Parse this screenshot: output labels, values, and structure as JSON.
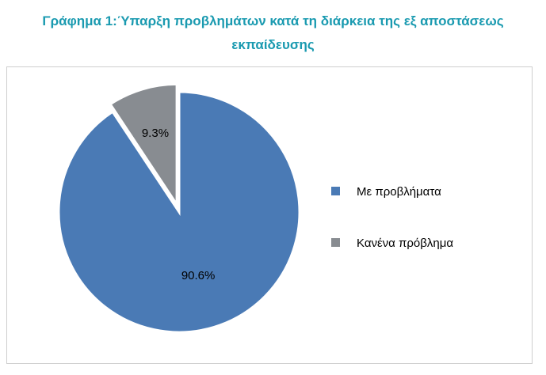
{
  "title": "Γράφημα 1:Ύπαρξη προβλημάτων κατά τη διάρκεια της εξ αποστάσεως εκπαίδευσης",
  "chart_data": {
    "type": "pie",
    "title": "Γράφημα 1:Ύπαρξη προβλημάτων κατά τη διάρκεια της εξ αποστάσεως εκπαίδευσης",
    "slices": [
      {
        "label": "Με προβλήματα",
        "value": 90.6,
        "display": "90.6%",
        "color": "#4a7ab5",
        "exploded": false
      },
      {
        "label": "Κανένα πρόβλημα",
        "value": 9.3,
        "display": "9.3%",
        "color": "#888c91",
        "exploded": true
      }
    ],
    "legend_position": "right"
  }
}
